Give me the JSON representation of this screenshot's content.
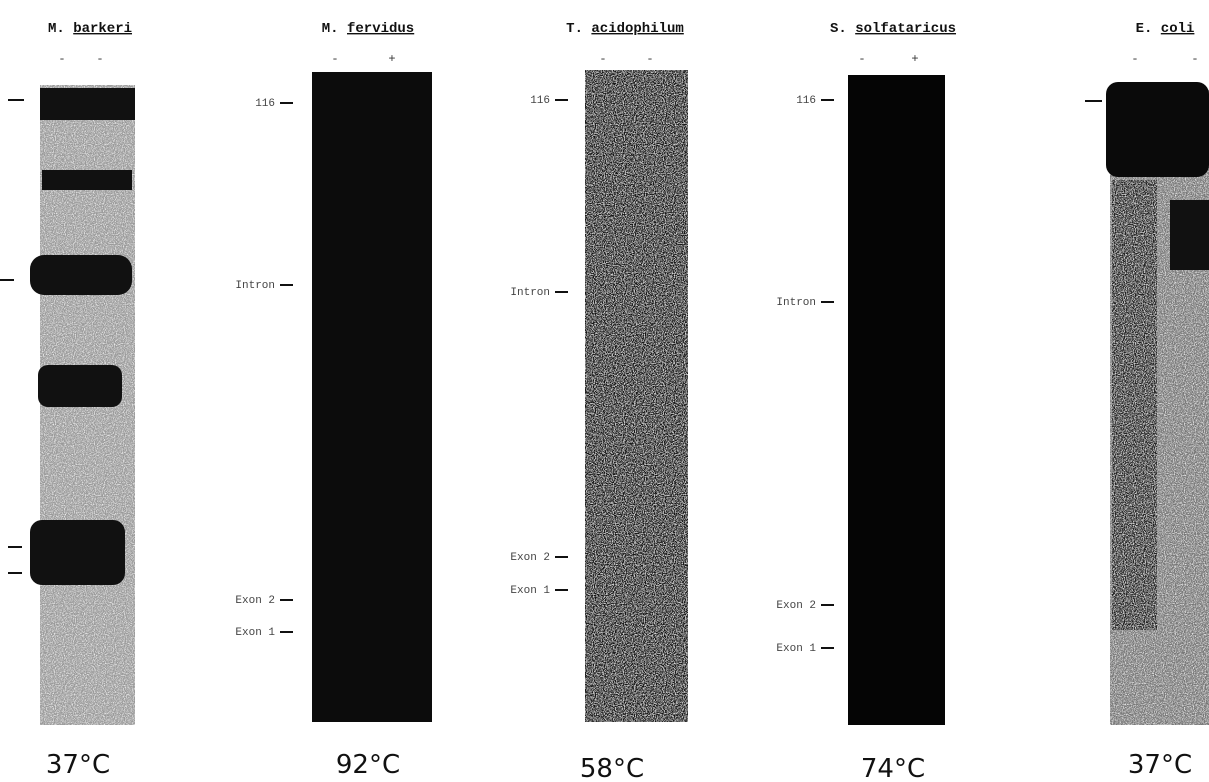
{
  "panels": [
    {
      "genus": "M.",
      "species": "barkeri",
      "lanes": [
        "-",
        "-"
      ],
      "markers": [],
      "temperature": "37°C"
    },
    {
      "genus": "M.",
      "species": "fervidus",
      "lanes": [
        "-",
        "+"
      ],
      "markers": [
        "116",
        "Intron",
        "Exon 2",
        "Exon 1"
      ],
      "temperature": "92°C"
    },
    {
      "genus": "T.",
      "species": "acidophilum",
      "lanes": [
        "-",
        "-"
      ],
      "markers": [
        "116",
        "Intron",
        "Exon 2",
        "Exon 1"
      ],
      "temperature": "58°C"
    },
    {
      "genus": "S.",
      "species": "solfataricus",
      "lanes": [
        "-",
        "+"
      ],
      "markers": [
        "116",
        "Intron",
        "Exon 2",
        "Exon 1"
      ],
      "temperature": "74°C"
    },
    {
      "genus": "E.",
      "species": "coli",
      "lanes": [
        "-",
        "-"
      ],
      "markers": [],
      "temperature": "37°C"
    }
  ]
}
